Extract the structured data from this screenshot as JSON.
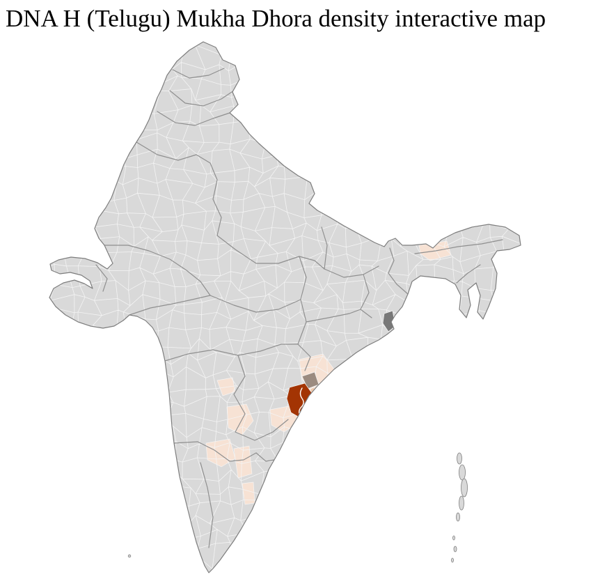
{
  "title": "DNA H (Telugu) Mukha Dhora density interactive map",
  "map": {
    "label": "india-district-density-choropleth",
    "background": "#ffffff",
    "palette": {
      "district_fill": "#d9d9d9",
      "district_border": "#f4f4f4",
      "state_border": "#8f8f8f",
      "country_border": "#7d7d7d",
      "density_faint": "#f7e2d4",
      "density_light": "#eec9ad",
      "density_high": "#a33403",
      "neutral_dark": "#787878",
      "neutral_taupe": "#9b8b80",
      "inner_marker": "#ffffff"
    }
  }
}
